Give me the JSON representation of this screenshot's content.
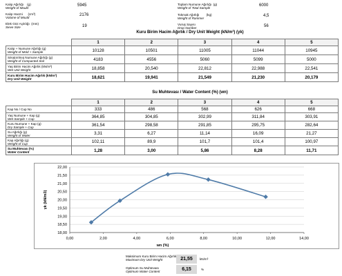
{
  "top_fields": {
    "mould_weight": {
      "tr": "Kalıp Ağırlığı",
      "en": "Weight of Mould",
      "unit": "(g)",
      "value": "5945"
    },
    "mould_volume": {
      "tr": "Kalıp Hacmi",
      "en": "Volume of Mould",
      "unit": "(cm³)",
      "value": "2176"
    },
    "sieve_size": {
      "tr": "Elek Göz Açıklığı",
      "en": "Sieve Size",
      "unit": "(mm)",
      "value": "19"
    },
    "total_sample": {
      "tr": "Toplam Numune Ağırlığı",
      "en": "Weight of Total Sample",
      "unit": "(g)",
      "value": "6000"
    },
    "rammer_weight": {
      "tr": "Tokmak Ağırlığı",
      "en": "Weight of Rammer",
      "unit": "(kg)",
      "value": "4,5"
    },
    "drop_number": {
      "tr": "Vuruş Sayısı",
      "en": "Drop Number",
      "unit": "",
      "value": "56"
    }
  },
  "unit_weight_table": {
    "title": "Kuru Birim Hacim Ağırlık / Dry Unit Weight  (kN/m³)  (γk)",
    "columns": [
      "1",
      "2",
      "3",
      "4",
      "5"
    ],
    "rows": [
      {
        "tr": "Kalıp + Numune Ağırlığı",
        "en": "Weight of Mold + Sample",
        "unit": "(g)",
        "values": [
          "10128",
          "10501",
          "11005",
          "11044",
          "10945"
        ]
      },
      {
        "tr": "Sıkıştırılmış Numune Ağırlığı",
        "en": "Weight of Compacted Soil",
        "unit": "(g)",
        "values": [
          "4183",
          "4556",
          "5060",
          "5099",
          "5000"
        ]
      },
      {
        "tr": "Yaş Birim Hacim Ağırlık",
        "en": "Wet Unit Weight",
        "unit": "(kN/m³)",
        "values": [
          "18,858",
          "20,540",
          "22,812",
          "22,988",
          "22,541"
        ]
      },
      {
        "tr": "Kuru Birim Hacim Ağırlık",
        "en": "Dry Unit Weight",
        "unit": "(kN/m³)",
        "values": [
          "18,621",
          "19,941",
          "21,549",
          "21,230",
          "20,179"
        ],
        "total": true
      }
    ]
  },
  "water_content_table": {
    "title": "Su Muhtevası / Water Content  (%)  (wn)",
    "columns": [
      "1",
      "2",
      "3",
      "4",
      "5"
    ],
    "rows": [
      {
        "tr": "Kap No / Cup No",
        "en": "",
        "unit": "",
        "values": [
          "333",
          "486",
          "568",
          "626",
          "668"
        ]
      },
      {
        "tr": "Yaş Numune + Kap",
        "en": "Wet Sample + Cup",
        "unit": "(g)",
        "values": [
          "364,85",
          "304,85",
          "302,99",
          "311,84",
          "303,91"
        ]
      },
      {
        "tr": "Kuru Numune + Kap",
        "en": "Dry Sample + Cup",
        "unit": "(g)",
        "values": [
          "361,54",
          "298,58",
          "291,85",
          "295,75",
          "282,64"
        ]
      },
      {
        "tr": "Su Ağırlığı",
        "en": "Weight of Water",
        "unit": "(g)",
        "values": [
          "3,31",
          "6,27",
          "11,14",
          "16,09",
          "21,27"
        ]
      },
      {
        "tr": "Kap Ağırlığı",
        "en": "Weight of Cup",
        "unit": "(g)",
        "values": [
          "102,11",
          "89,9",
          "101,7",
          "101,4",
          "100,97"
        ]
      },
      {
        "tr": "Su Muhtevası",
        "en": "Water Content",
        "unit": "(%)",
        "values": [
          "1,28",
          "3,00",
          "5,86",
          "8,28",
          "11,71"
        ],
        "total": true
      }
    ]
  },
  "chart_data": {
    "type": "line",
    "title": "",
    "xlabel": "wn  (%)",
    "ylabel": "γk   (kN/m3)",
    "xlim": [
      0,
      14
    ],
    "ylim": [
      18.0,
      22.0
    ],
    "x_ticks": [
      "0,00",
      "2,00",
      "4,00",
      "6,00",
      "8,00",
      "10,00",
      "12,00",
      "14,00"
    ],
    "y_ticks": [
      "18,00",
      "18,50",
      "19,00",
      "19,50",
      "20,00",
      "20,50",
      "21,00",
      "21,50",
      "22,00"
    ],
    "grid": "horizontal",
    "series": [
      {
        "name": "",
        "x": [
          1.28,
          3.0,
          5.86,
          8.28,
          11.71
        ],
        "y": [
          18.621,
          19.941,
          21.549,
          21.23,
          20.179
        ],
        "color": "#4f7ba8"
      }
    ]
  },
  "results": {
    "max_dry_label_tr": "Maksimum Kuru Birim Hacim Ağırlık",
    "max_dry_label_en": "Maximum Dry Unit Weight",
    "max_dry_value": "21,55",
    "max_dry_unit": "kN/m³",
    "owc_label_tr": "Optimum Su Muhtevası",
    "owc_label_en": "Optimum Water Content",
    "owc_value": "6,15",
    "owc_unit": "%"
  }
}
